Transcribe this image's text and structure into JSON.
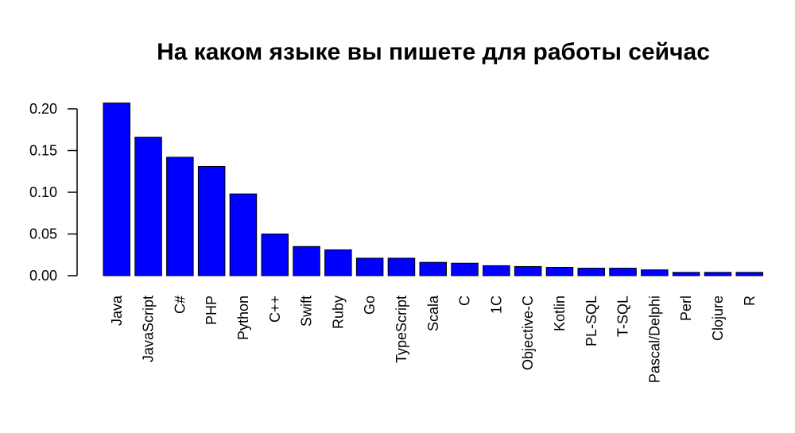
{
  "chart_data": {
    "type": "bar",
    "title": "На каком языке вы пишете для работы сейчас",
    "xlabel": "",
    "ylabel": "",
    "categories": [
      "Java",
      "JavaScript",
      "C#",
      "PHP",
      "Python",
      "C++",
      "Swift",
      "Ruby",
      "Go",
      "TypeScript",
      "Scala",
      "C",
      "1C",
      "Objective-C",
      "Kotlin",
      "PL-SQL",
      "T-SQL",
      "Pascal/Delphi",
      "Perl",
      "Clojure",
      "R"
    ],
    "values": [
      0.207,
      0.166,
      0.142,
      0.131,
      0.098,
      0.05,
      0.035,
      0.031,
      0.021,
      0.021,
      0.016,
      0.015,
      0.012,
      0.011,
      0.01,
      0.009,
      0.009,
      0.007,
      0.004,
      0.004,
      0.004
    ],
    "ylim": [
      0,
      0.2
    ],
    "yticks": [
      0.0,
      0.05,
      0.1,
      0.15,
      0.2
    ],
    "ytick_labels": [
      "0.00",
      "0.05",
      "0.10",
      "0.15",
      "0.20"
    ],
    "grid": false,
    "legend": "none",
    "colors": {
      "bar_fill": "#0000ff",
      "bar_stroke": "#000000",
      "axis": "#000000"
    }
  }
}
